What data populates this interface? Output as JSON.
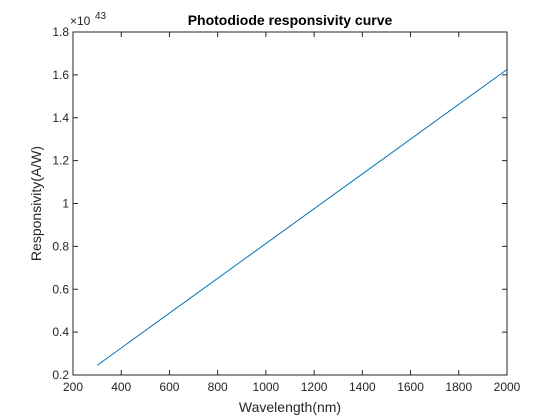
{
  "chart_data": {
    "type": "line",
    "title": "Photodiode responsivity curve",
    "xlabel": "Wavelength(nm)",
    "ylabel": "Responsivity(A/W)",
    "y_exponent_base": "×10",
    "y_exponent_power": "43",
    "xlim": [
      200,
      2000
    ],
    "ylim": [
      0.2,
      1.8
    ],
    "y_multiplier": 1e+43,
    "x_ticks": [
      "200",
      "400",
      "600",
      "800",
      "1000",
      "1200",
      "1400",
      "1600",
      "1800",
      "2000"
    ],
    "y_ticks": [
      "0.2",
      "0.4",
      "0.6",
      "0.8",
      "1",
      "1.2",
      "1.4",
      "1.6",
      "1.8"
    ],
    "grid": false,
    "legend": "none",
    "series": [
      {
        "color": "#0072bd",
        "x": [
          300,
          2000
        ],
        "y": [
          0.245,
          1.625
        ]
      }
    ]
  }
}
